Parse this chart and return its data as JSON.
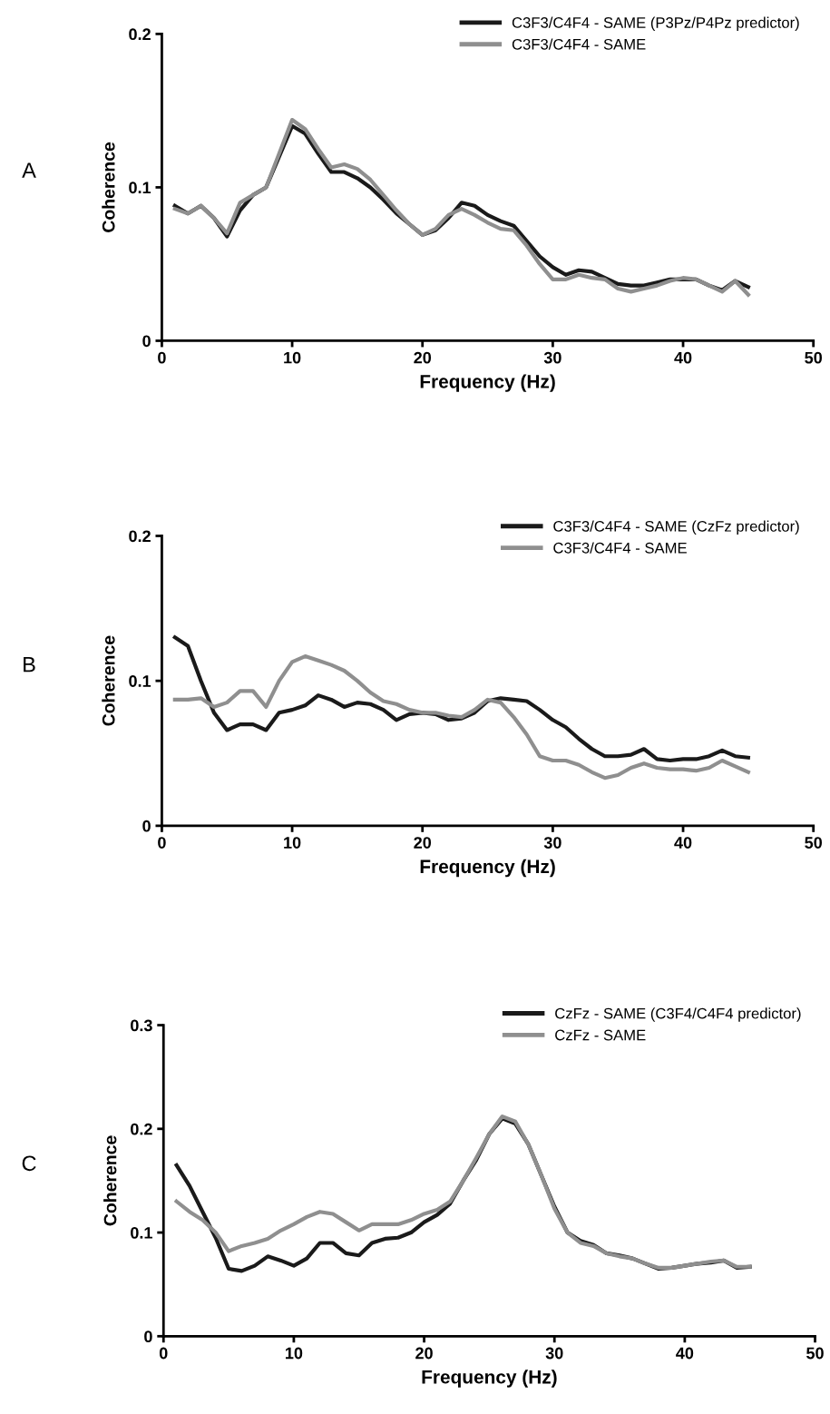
{
  "chart_data": [
    {
      "type": "line",
      "annotations": [
        "A"
      ],
      "xlabel": "Frequency (Hz)",
      "ylabel": "Coherence",
      "xlim": [
        0,
        50
      ],
      "ylim": [
        0,
        0.2
      ],
      "xticks": [
        0,
        10,
        20,
        30,
        40,
        50
      ],
      "yticks": [
        0,
        0.1,
        0.2
      ],
      "grid": false,
      "legend": "top right",
      "marker": "none",
      "line_style": "solid",
      "x": [
        1,
        2,
        3,
        4,
        5,
        6,
        7,
        8,
        9,
        10,
        11,
        12,
        13,
        14,
        15,
        16,
        17,
        18,
        19,
        20,
        21,
        22,
        23,
        24,
        25,
        26,
        27,
        28,
        29,
        30,
        31,
        32,
        33,
        34,
        35,
        36,
        37,
        38,
        39,
        40,
        41,
        42,
        43,
        44,
        45
      ],
      "series": [
        {
          "name": "C3F3/C4F4 - SAME (P3Pz/P4Pz predictor)",
          "color": "#1a1a1a",
          "values": [
            0.088,
            0.083,
            0.088,
            0.08,
            0.068,
            0.085,
            0.095,
            0.1,
            0.12,
            0.14,
            0.135,
            0.122,
            0.11,
            0.11,
            0.106,
            0.1,
            0.092,
            0.083,
            0.076,
            0.069,
            0.072,
            0.08,
            0.09,
            0.088,
            0.082,
            0.078,
            0.075,
            0.065,
            0.055,
            0.048,
            0.043,
            0.046,
            0.045,
            0.041,
            0.037,
            0.036,
            0.036,
            0.038,
            0.04,
            0.04,
            0.04,
            0.036,
            0.033,
            0.039,
            0.035
          ]
        },
        {
          "name": "C3F3/C4F4 - SAME",
          "color": "#8f8f8f",
          "values": [
            0.086,
            0.083,
            0.088,
            0.08,
            0.07,
            0.09,
            0.095,
            0.1,
            0.122,
            0.144,
            0.138,
            0.125,
            0.113,
            0.115,
            0.112,
            0.105,
            0.095,
            0.085,
            0.076,
            0.069,
            0.073,
            0.082,
            0.086,
            0.082,
            0.077,
            0.073,
            0.072,
            0.062,
            0.05,
            0.04,
            0.04,
            0.043,
            0.041,
            0.04,
            0.034,
            0.032,
            0.034,
            0.036,
            0.039,
            0.041,
            0.04,
            0.036,
            0.032,
            0.039,
            0.03
          ]
        }
      ]
    },
    {
      "type": "line",
      "annotations": [
        "B"
      ],
      "xlabel": "Frequency (Hz)",
      "ylabel": "Coherence",
      "xlim": [
        0,
        50
      ],
      "ylim": [
        0,
        0.2
      ],
      "xticks": [
        0,
        10,
        20,
        30,
        40,
        50
      ],
      "yticks": [
        0,
        0.1,
        0.2
      ],
      "grid": false,
      "legend": "top right",
      "marker": "none",
      "line_style": "solid",
      "x": [
        1,
        2,
        3,
        4,
        5,
        6,
        7,
        8,
        9,
        10,
        11,
        12,
        13,
        14,
        15,
        16,
        17,
        18,
        19,
        20,
        21,
        22,
        23,
        24,
        25,
        26,
        27,
        28,
        29,
        30,
        31,
        32,
        33,
        34,
        35,
        36,
        37,
        38,
        39,
        40,
        41,
        42,
        43,
        44,
        45
      ],
      "series": [
        {
          "name": "C3F3/C4F4 - SAME (CzFz predictor)",
          "color": "#1a1a1a",
          "values": [
            0.13,
            0.124,
            0.1,
            0.078,
            0.066,
            0.07,
            0.07,
            0.066,
            0.078,
            0.08,
            0.083,
            0.09,
            0.087,
            0.082,
            0.085,
            0.084,
            0.08,
            0.073,
            0.077,
            0.078,
            0.077,
            0.073,
            0.074,
            0.078,
            0.086,
            0.088,
            0.087,
            0.086,
            0.08,
            0.073,
            0.068,
            0.06,
            0.053,
            0.048,
            0.048,
            0.049,
            0.053,
            0.046,
            0.045,
            0.046,
            0.046,
            0.048,
            0.052,
            0.048,
            0.047
          ]
        },
        {
          "name": "C3F3/C4F4 - SAME",
          "color": "#8f8f8f",
          "values": [
            0.087,
            0.087,
            0.088,
            0.082,
            0.085,
            0.093,
            0.093,
            0.082,
            0.1,
            0.113,
            0.117,
            0.114,
            0.111,
            0.107,
            0.1,
            0.092,
            0.086,
            0.084,
            0.08,
            0.078,
            0.078,
            0.076,
            0.075,
            0.08,
            0.087,
            0.085,
            0.075,
            0.063,
            0.048,
            0.045,
            0.045,
            0.042,
            0.037,
            0.033,
            0.035,
            0.04,
            0.043,
            0.04,
            0.039,
            0.039,
            0.038,
            0.04,
            0.045,
            0.041,
            0.037
          ]
        }
      ]
    },
    {
      "type": "line",
      "annotations": [
        "C"
      ],
      "xlabel": "Frequency (Hz)",
      "ylabel": "Coherence",
      "xlim": [
        0,
        50
      ],
      "ylim": [
        0,
        0.3
      ],
      "xticks": [
        0,
        10,
        20,
        30,
        40,
        50
      ],
      "yticks": [
        0,
        0.1,
        0.2,
        0.3
      ],
      "grid": false,
      "legend": "top right",
      "marker": "none",
      "line_style": "solid",
      "x": [
        1,
        2,
        3,
        4,
        5,
        6,
        7,
        8,
        9,
        10,
        11,
        12,
        13,
        14,
        15,
        16,
        17,
        18,
        19,
        20,
        21,
        22,
        23,
        24,
        25,
        26,
        27,
        28,
        29,
        30,
        31,
        32,
        33,
        34,
        35,
        36,
        37,
        38,
        39,
        40,
        41,
        42,
        43,
        44,
        45
      ],
      "series": [
        {
          "name": "CzFz - SAME (C3F4/C4F4 predictor)",
          "color": "#1a1a1a",
          "values": [
            0.165,
            0.145,
            0.12,
            0.095,
            0.065,
            0.063,
            0.068,
            0.077,
            0.073,
            0.068,
            0.075,
            0.09,
            0.09,
            0.08,
            0.078,
            0.09,
            0.094,
            0.095,
            0.1,
            0.11,
            0.117,
            0.128,
            0.15,
            0.17,
            0.195,
            0.21,
            0.205,
            0.185,
            0.155,
            0.125,
            0.1,
            0.092,
            0.088,
            0.08,
            0.078,
            0.075,
            0.07,
            0.065,
            0.066,
            0.068,
            0.07,
            0.071,
            0.073,
            0.066,
            0.067
          ]
        },
        {
          "name": "CzFz - SAME",
          "color": "#8f8f8f",
          "values": [
            0.13,
            0.12,
            0.112,
            0.1,
            0.082,
            0.087,
            0.09,
            0.094,
            0.102,
            0.108,
            0.115,
            0.12,
            0.118,
            0.11,
            0.102,
            0.108,
            0.108,
            0.108,
            0.112,
            0.118,
            0.122,
            0.13,
            0.15,
            0.172,
            0.195,
            0.212,
            0.207,
            0.185,
            0.155,
            0.123,
            0.1,
            0.09,
            0.087,
            0.08,
            0.077,
            0.075,
            0.07,
            0.066,
            0.066,
            0.068,
            0.07,
            0.072,
            0.073,
            0.067,
            0.067
          ]
        }
      ]
    }
  ]
}
